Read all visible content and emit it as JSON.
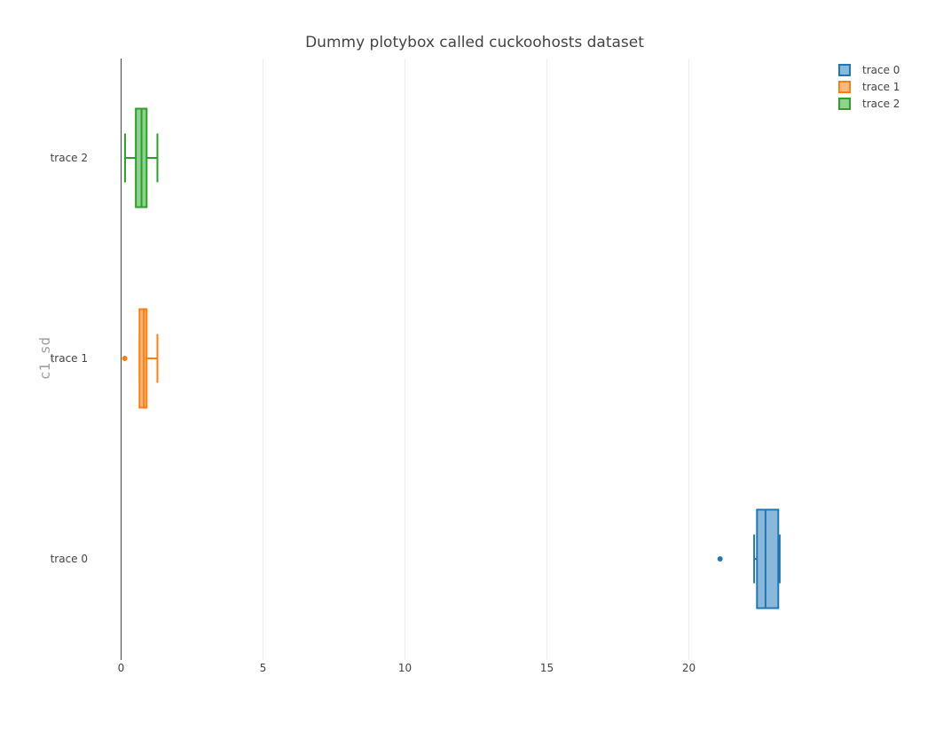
{
  "chart_data": {
    "type": "box",
    "orientation": "horizontal",
    "title": "Dummy plotybox called cuckoohosts dataset",
    "xlabel": "",
    "ylabel": "c1_sd",
    "xlim": [
      0,
      25
    ],
    "xticks": [
      0,
      5,
      10,
      15,
      20
    ],
    "categories": [
      "trace 0",
      "trace 1",
      "trace 2"
    ],
    "grid": "vertical",
    "legend": "top-right",
    "series": [
      {
        "name": "trace 0",
        "color": "#1f77b4",
        "fill": "#8ab8da",
        "min": 22.3,
        "q1": 22.4,
        "median": 22.7,
        "q3": 23.15,
        "max": 23.2,
        "outliers": [
          21.1
        ]
      },
      {
        "name": "trace 1",
        "color": "#ff7f0e",
        "fill": "#fcb980",
        "min": 0.65,
        "q1": 0.65,
        "median": 0.8,
        "q3": 0.9,
        "max": 1.28,
        "outliers": [
          0.13
        ]
      },
      {
        "name": "trace 2",
        "color": "#2ca02c",
        "fill": "#8fd18f",
        "min": 0.14,
        "q1": 0.52,
        "median": 0.72,
        "q3": 0.9,
        "max": 1.28,
        "outliers": []
      }
    ]
  }
}
